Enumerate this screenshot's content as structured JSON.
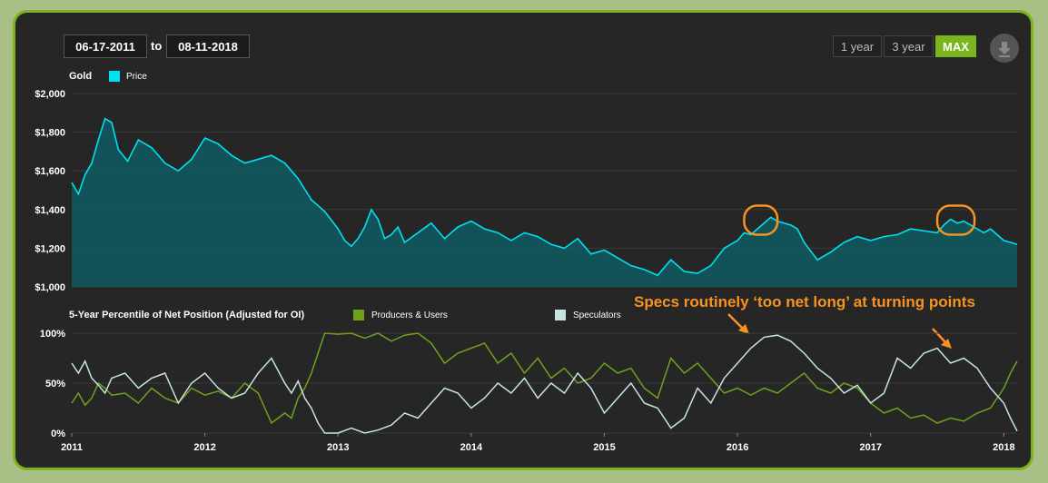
{
  "controls": {
    "start_date": "06-17-2011",
    "end_date": "08-11-2018",
    "to_label": "to",
    "range_buttons": [
      "1 year",
      "3 year",
      "MAX"
    ],
    "active_range": "MAX",
    "download_icon": "download-icon"
  },
  "colors": {
    "background": "#262626",
    "border": "#7ab51d",
    "price": "#00e1ef",
    "price_fill": "#11595f",
    "producers": "#6fa11d",
    "speculators": "#c5e6e0",
    "annotation": "#f7931e"
  },
  "annotation": {
    "text": "Specs routinely ‘too net long’ at turning points"
  },
  "chart_data": [
    {
      "type": "area",
      "title": "Gold",
      "series": [
        {
          "name": "Price",
          "x": [
            2011.0,
            2011.05,
            2011.1,
            2011.15,
            2011.2,
            2011.25,
            2011.3,
            2011.35,
            2011.42,
            2011.5,
            2011.6,
            2011.7,
            2011.8,
            2011.9,
            2012.0,
            2012.1,
            2012.2,
            2012.3,
            2012.4,
            2012.5,
            2012.6,
            2012.7,
            2012.8,
            2012.9,
            2013.0,
            2013.05,
            2013.1,
            2013.15,
            2013.2,
            2013.25,
            2013.3,
            2013.35,
            2013.4,
            2013.45,
            2013.5,
            2013.6,
            2013.7,
            2013.8,
            2013.9,
            2014.0,
            2014.1,
            2014.2,
            2014.3,
            2014.4,
            2014.5,
            2014.6,
            2014.7,
            2014.8,
            2014.9,
            2015.0,
            2015.1,
            2015.2,
            2015.3,
            2015.4,
            2015.5,
            2015.6,
            2015.7,
            2015.8,
            2015.9,
            2016.0,
            2016.05,
            2016.1,
            2016.15,
            2016.2,
            2016.25,
            2016.3,
            2016.35,
            2016.4,
            2016.45,
            2016.5,
            2016.6,
            2016.7,
            2016.8,
            2016.9,
            2017.0,
            2017.1,
            2017.2,
            2017.3,
            2017.4,
            2017.5,
            2017.55,
            2017.6,
            2017.65,
            2017.7,
            2017.75,
            2017.8,
            2017.85,
            2017.9,
            2017.95,
            2018.0,
            2018.1
          ],
          "values": [
            1540,
            1480,
            1580,
            1640,
            1760,
            1870,
            1850,
            1710,
            1650,
            1760,
            1720,
            1640,
            1600,
            1660,
            1770,
            1740,
            1680,
            1640,
            1660,
            1680,
            1640,
            1560,
            1450,
            1390,
            1300,
            1240,
            1210,
            1250,
            1310,
            1400,
            1350,
            1250,
            1270,
            1310,
            1230,
            1280,
            1330,
            1250,
            1310,
            1340,
            1300,
            1280,
            1240,
            1280,
            1260,
            1220,
            1200,
            1250,
            1170,
            1190,
            1150,
            1110,
            1090,
            1060,
            1140,
            1080,
            1070,
            1110,
            1200,
            1240,
            1280,
            1270,
            1300,
            1330,
            1360,
            1340,
            1330,
            1320,
            1300,
            1230,
            1140,
            1180,
            1230,
            1260,
            1240,
            1260,
            1270,
            1300,
            1290,
            1280,
            1320,
            1350,
            1330,
            1340,
            1320,
            1300,
            1280,
            1300,
            1270,
            1240,
            1220
          ]
        }
      ],
      "ylim": [
        1000,
        2000
      ],
      "ytick_labels": [
        "$2,000",
        "$1,800",
        "$1,600",
        "$1,400",
        "$1,200",
        "$1,000"
      ],
      "ytick_values": [
        2000,
        1800,
        1600,
        1400,
        1200,
        1000
      ],
      "highlights": [
        {
          "x_from": 2016.05,
          "x_to": 2016.3,
          "y": 1345
        },
        {
          "x_from": 2017.5,
          "x_to": 2017.78,
          "y": 1345
        }
      ]
    },
    {
      "type": "line",
      "title": "5-Year Percentile of Net Position (Adjusted for OI)",
      "series": [
        {
          "name": "Producers & Users",
          "x": [
            2011.0,
            2011.05,
            2011.1,
            2011.15,
            2011.2,
            2011.25,
            2011.3,
            2011.4,
            2011.5,
            2011.6,
            2011.7,
            2011.8,
            2011.9,
            2012.0,
            2012.1,
            2012.2,
            2012.3,
            2012.4,
            2012.5,
            2012.6,
            2012.65,
            2012.7,
            2012.75,
            2012.8,
            2012.85,
            2012.9,
            2013.0,
            2013.1,
            2013.2,
            2013.3,
            2013.4,
            2013.5,
            2013.6,
            2013.7,
            2013.8,
            2013.9,
            2014.0,
            2014.1,
            2014.2,
            2014.3,
            2014.4,
            2014.5,
            2014.6,
            2014.7,
            2014.8,
            2014.9,
            2015.0,
            2015.1,
            2015.2,
            2015.3,
            2015.4,
            2015.5,
            2015.6,
            2015.7,
            2015.8,
            2015.9,
            2016.0,
            2016.1,
            2016.2,
            2016.3,
            2016.4,
            2016.5,
            2016.6,
            2016.7,
            2016.8,
            2016.9,
            2017.0,
            2017.1,
            2017.2,
            2017.3,
            2017.4,
            2017.5,
            2017.6,
            2017.7,
            2017.8,
            2017.9,
            2018.0,
            2018.05,
            2018.1
          ],
          "values": [
            30,
            40,
            28,
            35,
            50,
            45,
            38,
            40,
            30,
            45,
            35,
            30,
            45,
            38,
            42,
            35,
            50,
            40,
            10,
            20,
            15,
            35,
            45,
            60,
            80,
            100,
            99,
            100,
            95,
            100,
            92,
            98,
            100,
            90,
            70,
            80,
            85,
            90,
            70,
            80,
            60,
            75,
            55,
            65,
            50,
            55,
            70,
            60,
            65,
            45,
            35,
            75,
            60,
            70,
            55,
            40,
            45,
            38,
            45,
            40,
            50,
            60,
            45,
            40,
            50,
            45,
            30,
            20,
            25,
            15,
            18,
            10,
            15,
            12,
            20,
            25,
            45,
            60,
            72
          ]
        },
        {
          "name": "Speculators",
          "x": [
            2011.0,
            2011.05,
            2011.1,
            2011.15,
            2011.2,
            2011.25,
            2011.3,
            2011.4,
            2011.5,
            2011.6,
            2011.7,
            2011.8,
            2011.9,
            2012.0,
            2012.1,
            2012.2,
            2012.3,
            2012.4,
            2012.5,
            2012.6,
            2012.65,
            2012.7,
            2012.75,
            2012.8,
            2012.85,
            2012.9,
            2013.0,
            2013.1,
            2013.2,
            2013.3,
            2013.4,
            2013.5,
            2013.6,
            2013.7,
            2013.8,
            2013.9,
            2014.0,
            2014.1,
            2014.2,
            2014.3,
            2014.4,
            2014.5,
            2014.6,
            2014.7,
            2014.8,
            2014.9,
            2015.0,
            2015.1,
            2015.2,
            2015.3,
            2015.4,
            2015.5,
            2015.6,
            2015.7,
            2015.8,
            2015.9,
            2016.0,
            2016.1,
            2016.2,
            2016.3,
            2016.4,
            2016.5,
            2016.6,
            2016.7,
            2016.8,
            2016.9,
            2017.0,
            2017.1,
            2017.2,
            2017.3,
            2017.4,
            2017.5,
            2017.6,
            2017.7,
            2017.8,
            2017.9,
            2018.0,
            2018.05,
            2018.1
          ],
          "values": [
            70,
            60,
            72,
            55,
            48,
            40,
            55,
            60,
            45,
            55,
            60,
            30,
            50,
            60,
            45,
            35,
            40,
            60,
            75,
            50,
            40,
            52,
            35,
            25,
            10,
            0,
            0,
            5,
            0,
            3,
            8,
            20,
            15,
            30,
            45,
            40,
            25,
            35,
            50,
            40,
            55,
            35,
            50,
            40,
            60,
            45,
            20,
            35,
            50,
            30,
            25,
            5,
            15,
            45,
            30,
            55,
            70,
            85,
            96,
            98,
            92,
            80,
            65,
            55,
            40,
            48,
            30,
            40,
            75,
            65,
            80,
            85,
            70,
            75,
            65,
            45,
            30,
            15,
            2
          ]
        }
      ],
      "ylim": [
        0,
        100
      ],
      "ytick_labels": [
        "100%",
        "50%",
        "0%"
      ],
      "ytick_values": [
        100,
        50,
        0
      ],
      "xtick_labels": [
        "2011",
        "2012",
        "2013",
        "2014",
        "2015",
        "2016",
        "2017",
        "2018"
      ],
      "xtick_values": [
        2011,
        2012,
        2013,
        2014,
        2015,
        2016,
        2017,
        2018
      ],
      "xlim": [
        2011.0,
        2018.1
      ]
    }
  ]
}
